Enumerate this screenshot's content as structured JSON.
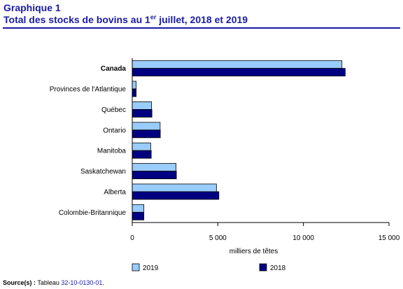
{
  "header": {
    "graph_label": "Graphique 1",
    "title_prefix": "Total des stocks de bovins au 1",
    "title_sup": "er",
    "title_suffix": " juillet, 2018 et 2019"
  },
  "source": {
    "label": "Source(s) :",
    "text": " Tableau ",
    "table_id": "32-10-0130-01",
    "end": "."
  },
  "colors": {
    "series_2019": "#99ccff",
    "series_2018": "#000080",
    "title": "#1a1aa6"
  },
  "chart_data": {
    "type": "bar",
    "orientation": "horizontal",
    "categories": [
      "Canada",
      "Provinces de l'Atlantique",
      "Québec",
      "Ontario",
      "Manitoba",
      "Saskatchewan",
      "Alberta",
      "Colombie-Britannique"
    ],
    "bold_categories": [
      "Canada"
    ],
    "series": [
      {
        "name": "2019",
        "values": [
          12250,
          230,
          1130,
          1630,
          1080,
          2560,
          4920,
          680
        ]
      },
      {
        "name": "2018",
        "values": [
          12440,
          230,
          1150,
          1640,
          1110,
          2580,
          5060,
          680
        ]
      }
    ],
    "xlabel": "milliers de têtes",
    "xlim": [
      0,
      15000
    ],
    "xticks": [
      0,
      5000,
      10000,
      15000
    ],
    "xtick_labels": [
      "0",
      "5 000",
      "10 000",
      "15 000"
    ],
    "grid": false,
    "legend_position": "bottom"
  }
}
